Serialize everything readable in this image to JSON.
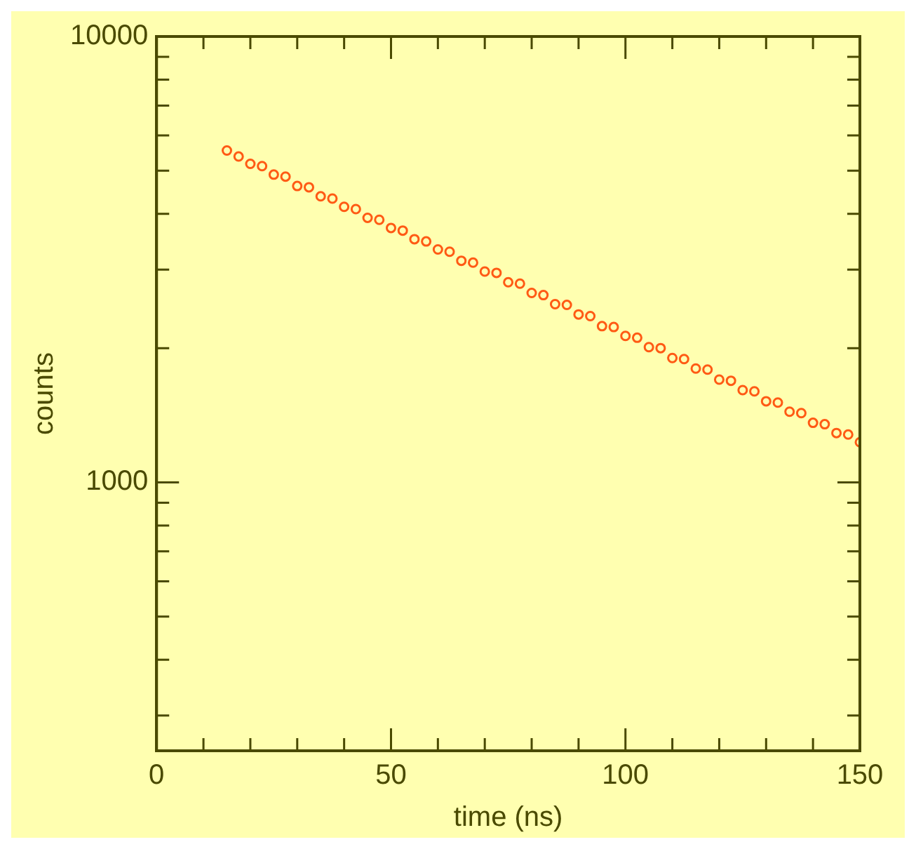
{
  "chart_data": {
    "type": "scatter",
    "xlabel": "time (ns)",
    "ylabel": "counts",
    "log": "y",
    "marker": "circle",
    "grid": false,
    "xlim": [
      0,
      150
    ],
    "ylim": [
      250,
      10000
    ],
    "xticks": [
      0,
      {
        "value": 10,
        "label": null
      },
      {
        "value": 20,
        "label": null
      },
      {
        "value": 30,
        "label": null
      },
      {
        "value": 40,
        "label": null
      },
      50,
      {
        "value": 60,
        "label": null
      },
      {
        "value": 70,
        "label": null
      },
      {
        "value": 80,
        "label": null
      },
      {
        "value": 90,
        "label": null
      },
      100,
      {
        "value": 110,
        "label": null
      },
      {
        "value": 120,
        "label": null
      },
      {
        "value": 130,
        "label": null
      },
      {
        "value": 140,
        "label": null
      },
      150
    ],
    "yticks": [
      {
        "value": 300,
        "label": null
      },
      {
        "value": 400,
        "label": null
      },
      {
        "value": 500,
        "label": null
      },
      {
        "value": 600,
        "label": null
      },
      {
        "value": 700,
        "label": null
      },
      {
        "value": 800,
        "label": null
      },
      {
        "value": 900,
        "label": null
      },
      1000,
      {
        "value": 2000,
        "label": null
      },
      {
        "value": 3000,
        "label": null
      },
      {
        "value": 4000,
        "label": null
      },
      {
        "value": 5000,
        "label": null
      },
      {
        "value": 6000,
        "label": null
      },
      {
        "value": 7000,
        "label": null
      },
      {
        "value": 8000,
        "label": null
      },
      {
        "value": 9000,
        "label": null
      },
      10000
    ],
    "series": [
      {
        "color": "#ff5a14",
        "x": [
          15,
          17.5,
          20,
          22.5,
          25,
          27.5,
          30,
          32.5,
          35,
          37.5,
          40,
          42.5,
          45,
          47.5,
          50,
          52.5,
          55,
          57.5,
          60,
          62.5,
          65,
          67.5,
          70,
          72.5,
          75,
          77.5,
          80,
          82.5,
          85,
          87.5,
          90,
          92.5,
          95,
          97.5,
          100,
          102.5,
          105,
          107.5,
          110,
          112.5,
          115,
          117.5,
          120,
          122.5,
          125,
          127.5,
          130,
          132.5,
          135,
          137.5,
          140,
          142.5,
          145,
          147.5,
          150
        ],
        "values": [
          5550,
          5380,
          5180,
          5120,
          4900,
          4850,
          4620,
          4590,
          4380,
          4330,
          4150,
          4100,
          3920,
          3880,
          3720,
          3670,
          3510,
          3470,
          3330,
          3290,
          3140,
          3110,
          2970,
          2950,
          2810,
          2790,
          2660,
          2630,
          2510,
          2500,
          2380,
          2360,
          2240,
          2230,
          2130,
          2110,
          2010,
          2000,
          1900,
          1890,
          1800,
          1790,
          1700,
          1690,
          1610,
          1600,
          1520,
          1510,
          1440,
          1430,
          1360,
          1350,
          1290,
          1280,
          1230
        ]
      }
    ]
  }
}
